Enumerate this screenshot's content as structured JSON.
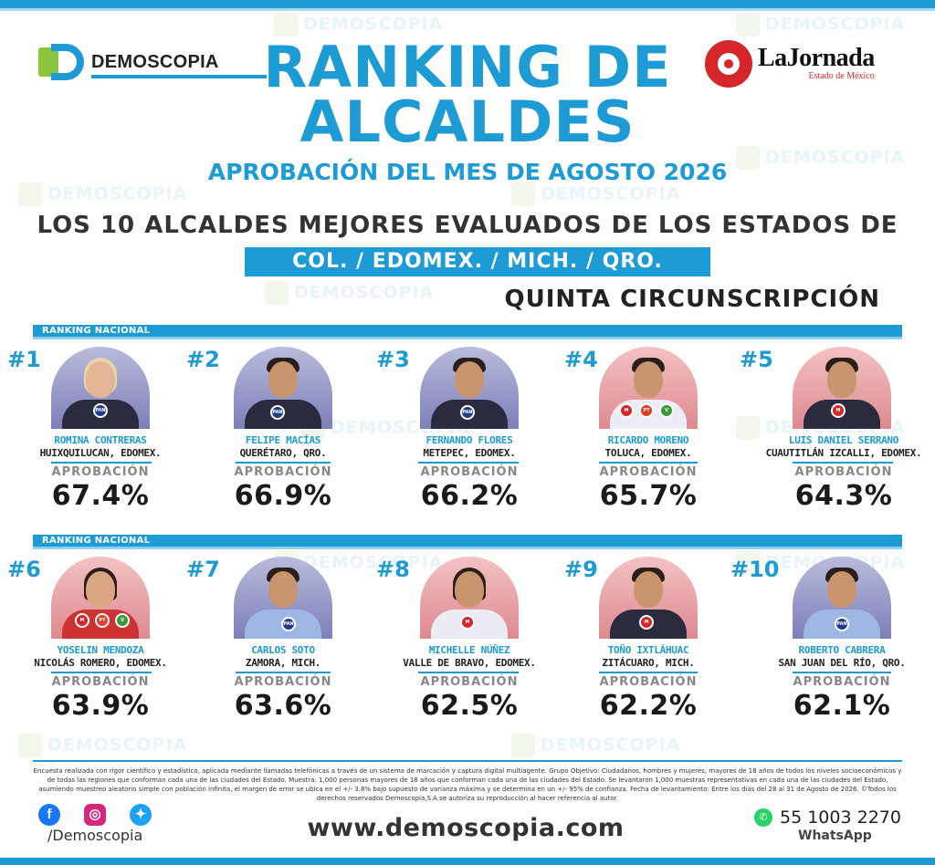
{
  "watermark_text": "DEMOSCOPIA",
  "logos": {
    "demoscopia": "DEMOSCOPIA",
    "jornada_name": "LaJornada",
    "jornada_sub": "Estado de México"
  },
  "title": "RANKING DE ALCALDES",
  "subtitle": "APROBACIÓN DEL MES DE AGOSTO 2026",
  "headline": "LOS 10 ALCALDES MEJORES EVALUADOS DE LOS ESTADOS DE",
  "states": "COL. /  EDOMEX.  /  MICH.  /  QRO.",
  "circunscripcion": "QUINTA CIRCUNSCRIPCIÓN",
  "ranking_label": "RANKING NACIONAL",
  "approval_label": "APROBACIÓN",
  "mayors": [
    {
      "rank": "#1",
      "name": "ROMINA CONTRERAS",
      "city": "HUIXQUILUCAN, EDOMEX.",
      "approval": "67.4%",
      "party_badges": [
        "PAN"
      ]
    },
    {
      "rank": "#2",
      "name": "FELIPE MACÍAS",
      "city": "QUERÉTARO, QRO.",
      "approval": "66.9%",
      "party_badges": [
        "PAN"
      ]
    },
    {
      "rank": "#3",
      "name": "FERNANDO FLORES",
      "city": "METEPEC, EDOMEX.",
      "approval": "66.2%",
      "party_badges": [
        "PAN"
      ]
    },
    {
      "rank": "#4",
      "name": "RICARDO MORENO",
      "city": "TOLUCA, EDOMEX.",
      "approval": "65.7%",
      "party_badges": [
        "morena",
        "PT",
        "Verde"
      ]
    },
    {
      "rank": "#5",
      "name": "LUIS DANIEL SERRANO",
      "city": "CUAUTITLÁN IZCALLI, EDOMEX.",
      "approval": "64.3%",
      "party_badges": [
        "morena"
      ]
    },
    {
      "rank": "#6",
      "name": "YOSELIN MENDOZA",
      "city": "NICOLÁS ROMERO, EDOMEX.",
      "approval": "63.9%",
      "party_badges": [
        "morena",
        "PT",
        "Verde"
      ]
    },
    {
      "rank": "#7",
      "name": "CARLOS SOTO",
      "city": "ZAMORA, MICH.",
      "approval": "63.6%",
      "party_badges": [
        "PAN"
      ]
    },
    {
      "rank": "#8",
      "name": "MICHELLE NÚÑEZ",
      "city": "VALLE DE BRAVO, EDOMEX.",
      "approval": "62.5%",
      "party_badges": [
        "morena"
      ]
    },
    {
      "rank": "#9",
      "name": "TOÑO IXTLÁHUAC",
      "city": "ZITÁCUARO, MICH.",
      "approval": "62.2%",
      "party_badges": [
        "morena"
      ]
    },
    {
      "rank": "#10",
      "name": "ROBERTO CABRERA",
      "city": "SAN JUAN DEL RÍO, QRO.",
      "approval": "62.1%",
      "party_badges": [
        "PAN"
      ]
    }
  ],
  "footnote": "Encuesta realizada con rigor científico y estadístico, aplicada mediante llamadas telefónicas a través de un sistema de marcación y captura digital multiagente. Grupo Objetivo: Ciudadanos, hombres y mujeres, mayores de 18 años de todos los niveles socioeconómicos y de todas las regiones que conforman cada una de las ciudades del Estado. Muestra: 1,000 personas mayores de 18 años que conforman cada una de las ciudades del Estado. Se levantaron 1,000 muestras representativas en cada una de las ciudades del Estado, asumiendo muestreo aleatorio simple con población infinita, el margen de error se ubica en el +/- 3.8% bajo supuesto de varianza máxima y se determina en un +/- 95% de confianza. Fecha de levantamiento: Entre los días del 28 al 31 de Agosto de 2026. ©Todos los derechos reservados Demoscopia,S.A se autoriza su reproducción al hacer referencia al autor.",
  "social": {
    "icons": [
      "facebook-icon",
      "instagram-icon",
      "twitter-icon"
    ],
    "handle": "/Demoscopia"
  },
  "website": "www.demoscopia.com",
  "whatsapp": {
    "number": "55 1003 2270",
    "label": "WhatsApp"
  },
  "colors": {
    "accent": "#1c9bd4",
    "green": "#8cc63f",
    "red": "#d7262a"
  }
}
